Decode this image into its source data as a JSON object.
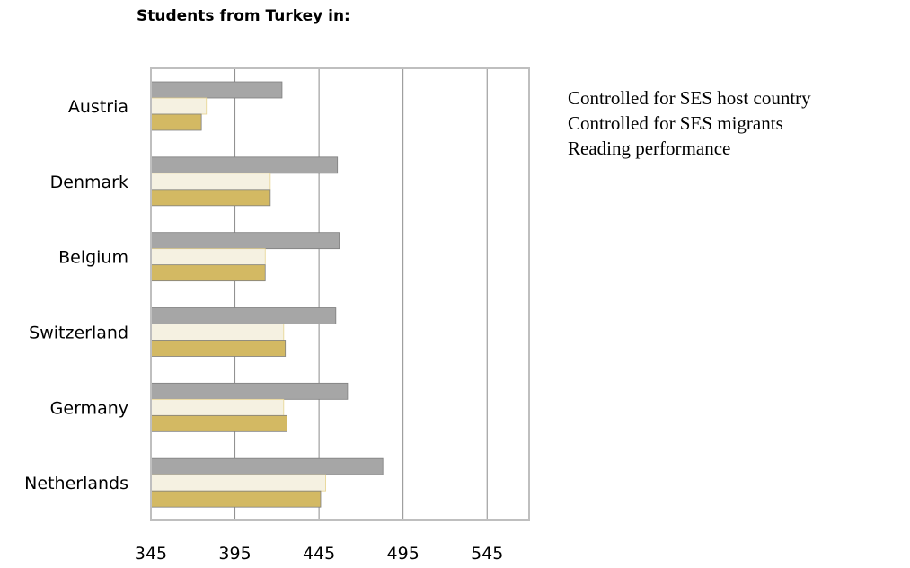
{
  "chart_data": {
    "type": "bar",
    "orientation": "horizontal",
    "title": "Students from Turkey in:",
    "categories": [
      "Austria",
      "Denmark",
      "Belgium",
      "Switzerland",
      "Germany",
      "Netherlands"
    ],
    "series": [
      {
        "name": "Controlled for SES host country",
        "color": "#a6a6a6",
        "values": [
          423,
          456,
          457,
          455,
          462,
          483
        ]
      },
      {
        "name": "Controlled for SES migrants",
        "color": "#f5f1e1",
        "values": [
          378,
          416,
          413,
          424,
          424,
          449
        ]
      },
      {
        "name": "Reading performance",
        "color": "#d3b963",
        "values": [
          375,
          416,
          413,
          425,
          426,
          446
        ]
      }
    ],
    "xticks": [
      "345",
      "395",
      "445",
      "495",
      "545"
    ],
    "xlim": [
      345,
      570
    ],
    "grid": true,
    "legend_position": "right"
  }
}
